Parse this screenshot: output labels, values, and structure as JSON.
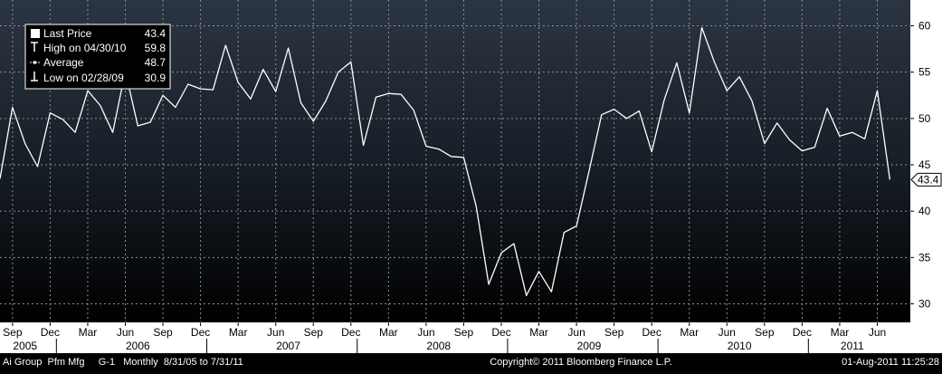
{
  "chart_data": {
    "type": "line",
    "legend": {
      "placement": "top-left",
      "entries": [
        {
          "label": "Last Price",
          "value": "43.4",
          "marker": "square"
        },
        {
          "label": "High on 04/30/10",
          "value": "59.8",
          "marker": "high-tick"
        },
        {
          "label": "Average",
          "value": "48.7",
          "marker": "average-line"
        },
        {
          "label": "Low on 02/28/09",
          "value": "30.9",
          "marker": "low-tick"
        }
      ]
    },
    "ylim": [
      28,
      62
    ],
    "yticks": [
      30,
      35,
      40,
      45,
      50,
      55,
      60
    ],
    "ytick_labels": [
      "30",
      "35",
      "40",
      "45",
      "50",
      "55",
      "60"
    ],
    "grid": true,
    "last_label": "43.4",
    "x_start_month": "2005-08",
    "x_months_shown": 72,
    "month_ticks": [
      {
        "label": "Sep",
        "month": "2005-09"
      },
      {
        "label": "Dec",
        "month": "2005-12"
      },
      {
        "label": "Mar",
        "month": "2006-03"
      },
      {
        "label": "Jun",
        "month": "2006-06"
      },
      {
        "label": "Sep",
        "month": "2006-09"
      },
      {
        "label": "Dec",
        "month": "2006-12"
      },
      {
        "label": "Mar",
        "month": "2007-03"
      },
      {
        "label": "Jun",
        "month": "2007-06"
      },
      {
        "label": "Sep",
        "month": "2007-09"
      },
      {
        "label": "Dec",
        "month": "2007-12"
      },
      {
        "label": "Mar",
        "month": "2008-03"
      },
      {
        "label": "Jun",
        "month": "2008-06"
      },
      {
        "label": "Sep",
        "month": "2008-09"
      },
      {
        "label": "Dec",
        "month": "2008-12"
      },
      {
        "label": "Mar",
        "month": "2009-03"
      },
      {
        "label": "Jun",
        "month": "2009-06"
      },
      {
        "label": "Sep",
        "month": "2009-09"
      },
      {
        "label": "Dec",
        "month": "2009-12"
      },
      {
        "label": "Mar",
        "month": "2010-03"
      },
      {
        "label": "Jun",
        "month": "2010-06"
      },
      {
        "label": "Sep",
        "month": "2010-09"
      },
      {
        "label": "Dec",
        "month": "2010-12"
      },
      {
        "label": "Mar",
        "month": "2011-03"
      },
      {
        "label": "Jun",
        "month": "2011-06"
      }
    ],
    "year_ticks": [
      {
        "label": "2005",
        "month": "2005-10"
      },
      {
        "label": "2006",
        "month": "2006-07"
      },
      {
        "label": "2007",
        "month": "2007-07"
      },
      {
        "label": "2008",
        "month": "2008-07"
      },
      {
        "label": "2009",
        "month": "2009-07"
      },
      {
        "label": "2010",
        "month": "2010-07"
      },
      {
        "label": "2011",
        "month": "2011-04"
      }
    ],
    "series": [
      {
        "color": "#ffffff",
        "points": [
          {
            "x": "2005-08",
            "y": 43.5
          },
          {
            "x": "2005-09",
            "y": 51.2
          },
          {
            "x": "2005-10",
            "y": 47.3
          },
          {
            "x": "2005-11",
            "y": 44.8
          },
          {
            "x": "2005-12",
            "y": 50.6
          },
          {
            "x": "2006-01",
            "y": 49.9
          },
          {
            "x": "2006-02",
            "y": 48.5
          },
          {
            "x": "2006-03",
            "y": 53.0
          },
          {
            "x": "2006-04",
            "y": 51.4
          },
          {
            "x": "2006-05",
            "y": 48.5
          },
          {
            "x": "2006-06",
            "y": 55.1
          },
          {
            "x": "2006-07",
            "y": 49.2
          },
          {
            "x": "2006-08",
            "y": 49.6
          },
          {
            "x": "2006-09",
            "y": 52.5
          },
          {
            "x": "2006-10",
            "y": 51.2
          },
          {
            "x": "2006-11",
            "y": 53.7
          },
          {
            "x": "2006-12",
            "y": 53.2
          },
          {
            "x": "2007-01",
            "y": 53.1
          },
          {
            "x": "2007-02",
            "y": 57.9
          },
          {
            "x": "2007-03",
            "y": 53.9
          },
          {
            "x": "2007-04",
            "y": 52.1
          },
          {
            "x": "2007-05",
            "y": 55.3
          },
          {
            "x": "2007-06",
            "y": 52.9
          },
          {
            "x": "2007-07",
            "y": 57.6
          },
          {
            "x": "2007-08",
            "y": 51.7
          },
          {
            "x": "2007-09",
            "y": 49.7
          },
          {
            "x": "2007-10",
            "y": 51.9
          },
          {
            "x": "2007-11",
            "y": 55.0
          },
          {
            "x": "2007-12",
            "y": 56.1
          },
          {
            "x": "2008-01",
            "y": 47.1
          },
          {
            "x": "2008-02",
            "y": 52.3
          },
          {
            "x": "2008-03",
            "y": 52.7
          },
          {
            "x": "2008-04",
            "y": 52.6
          },
          {
            "x": "2008-05",
            "y": 50.9
          },
          {
            "x": "2008-06",
            "y": 47.0
          },
          {
            "x": "2008-07",
            "y": 46.7
          },
          {
            "x": "2008-08",
            "y": 45.9
          },
          {
            "x": "2008-09",
            "y": 45.8
          },
          {
            "x": "2008-10",
            "y": 40.5
          },
          {
            "x": "2008-11",
            "y": 32.1
          },
          {
            "x": "2008-12",
            "y": 35.5
          },
          {
            "x": "2009-01",
            "y": 36.5
          },
          {
            "x": "2009-02",
            "y": 30.9
          },
          {
            "x": "2009-03",
            "y": 33.5
          },
          {
            "x": "2009-04",
            "y": 31.3
          },
          {
            "x": "2009-05",
            "y": 37.7
          },
          {
            "x": "2009-06",
            "y": 38.4
          },
          {
            "x": "2009-07",
            "y": 44.3
          },
          {
            "x": "2009-08",
            "y": 50.4
          },
          {
            "x": "2009-09",
            "y": 51.0
          },
          {
            "x": "2009-10",
            "y": 50.0
          },
          {
            "x": "2009-11",
            "y": 50.8
          },
          {
            "x": "2009-12",
            "y": 46.4
          },
          {
            "x": "2010-01",
            "y": 52.0
          },
          {
            "x": "2010-02",
            "y": 56.0
          },
          {
            "x": "2010-03",
            "y": 50.6
          },
          {
            "x": "2010-04",
            "y": 59.8
          },
          {
            "x": "2010-05",
            "y": 56.1
          },
          {
            "x": "2010-06",
            "y": 53.0
          },
          {
            "x": "2010-07",
            "y": 54.5
          },
          {
            "x": "2010-08",
            "y": 51.9
          },
          {
            "x": "2010-09",
            "y": 47.3
          },
          {
            "x": "2010-10",
            "y": 49.5
          },
          {
            "x": "2010-11",
            "y": 47.7
          },
          {
            "x": "2010-12",
            "y": 46.5
          },
          {
            "x": "2011-01",
            "y": 46.9
          },
          {
            "x": "2011-02",
            "y": 51.1
          },
          {
            "x": "2011-03",
            "y": 48.1
          },
          {
            "x": "2011-04",
            "y": 48.5
          },
          {
            "x": "2011-05",
            "y": 47.8
          },
          {
            "x": "2011-06",
            "y": 53.0
          },
          {
            "x": "2011-07",
            "y": 43.4
          }
        ]
      }
    ]
  },
  "footer": {
    "left": "Ai Group  Pfm Mfg     G-1   Monthly  8/31/05 to 7/31/11",
    "center": "Copyright© 2011 Bloomberg Finance L.P.",
    "right": "01-Aug-2011 11:25:28"
  },
  "colors": {
    "line": "#ffffff",
    "grid": "#8a9099",
    "bg_top": "#2b3542",
    "bg_bottom": "#000000",
    "axis_bg": "#ffffff",
    "axis_text": "#000000"
  }
}
